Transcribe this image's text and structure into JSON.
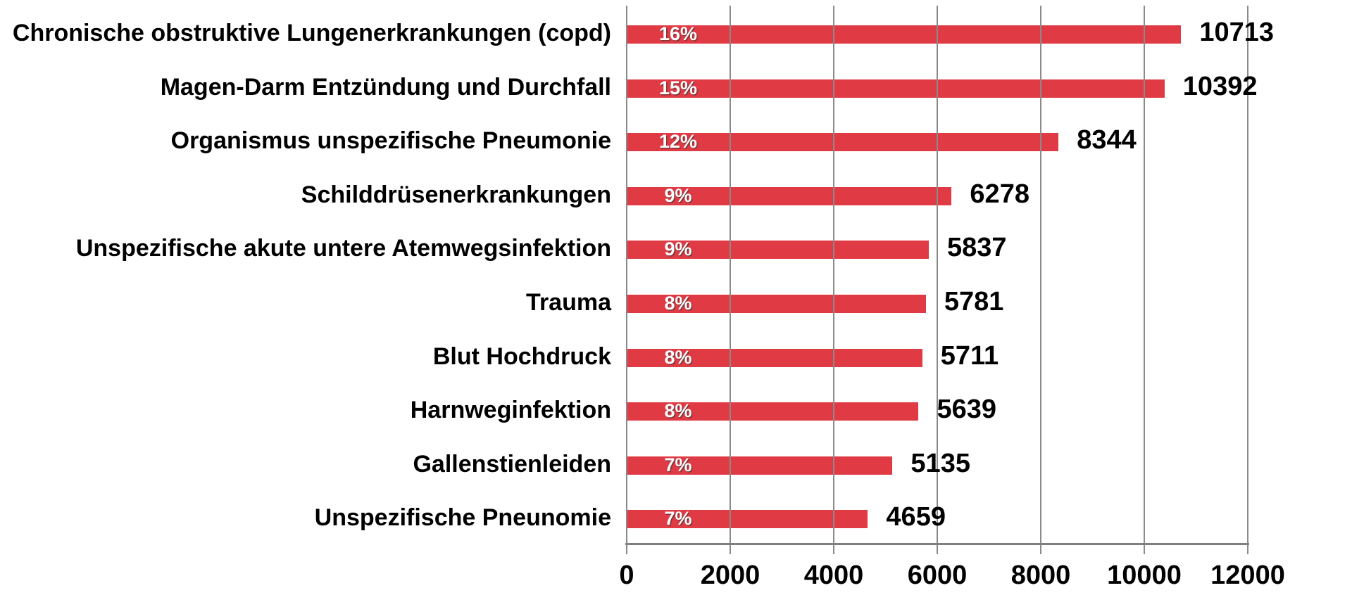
{
  "chart_data": {
    "type": "bar",
    "orientation": "horizontal",
    "categories": [
      "Chronische obstruktive Lungenerkrankungen (copd)",
      "Magen-Darm Entzündung und Durchfall",
      "Organismus unspezifische Pneumonie",
      "Schilddrüsenerkrankungen",
      "Unspezifische akute untere Atemwegsinfektion",
      "Trauma",
      "Blut Hochdruck",
      "Harnweginfektion",
      "Gallenstienleiden",
      "Unspezifische Pneunomie"
    ],
    "values": [
      10713,
      10392,
      8344,
      6278,
      5837,
      5781,
      5711,
      5639,
      5135,
      4659
    ],
    "value_labels": [
      "10713",
      "10392",
      "8344",
      "6278",
      "5837",
      "5781",
      "5711",
      "5639",
      "5135",
      "4659"
    ],
    "percent_labels": [
      "16%",
      "15%",
      "12%",
      "9%",
      "9%",
      "8%",
      "8%",
      "8%",
      "7%",
      "7%"
    ],
    "x_ticks": [
      0,
      2000,
      4000,
      6000,
      8000,
      10000,
      12000
    ],
    "xlim": [
      0,
      12000
    ],
    "grid": "vertical-gridlines-over-bars",
    "legend": "none",
    "colors": {
      "bar": "#e03a44",
      "gridline": "#8a8a8a",
      "axis": "#7f7f7f",
      "text": "#000000",
      "percent_text": "#ffffff"
    }
  }
}
